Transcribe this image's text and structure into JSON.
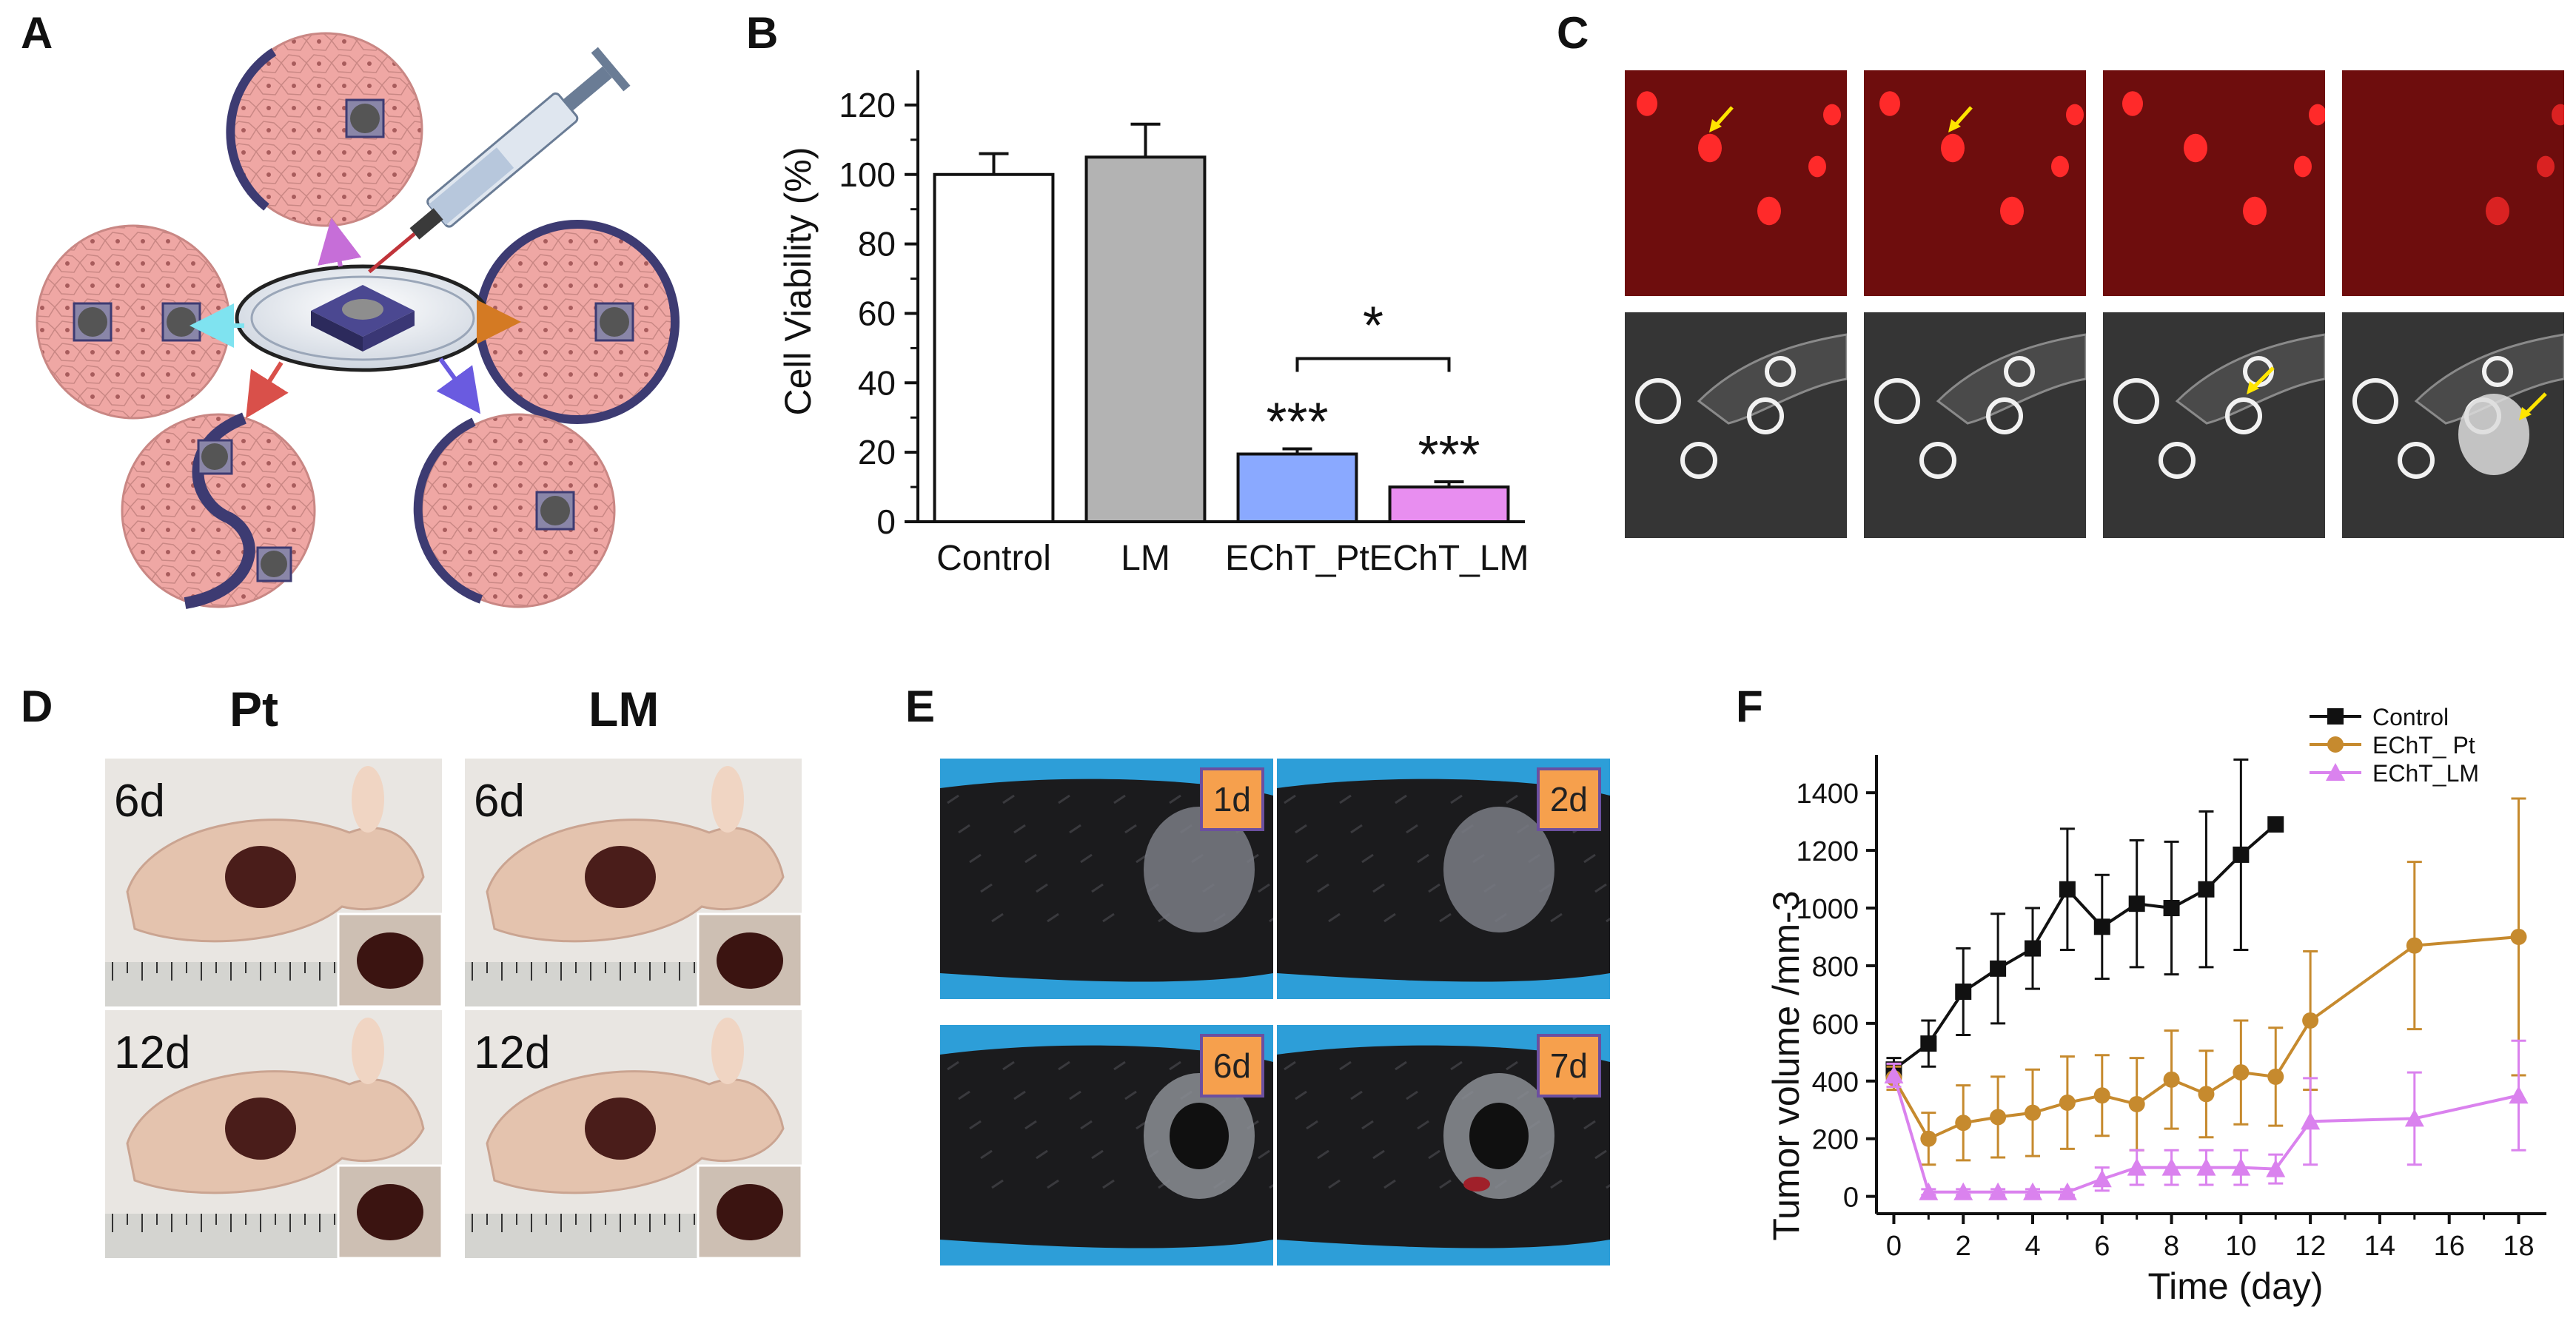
{
  "panels": {
    "a": {
      "label": "A"
    },
    "b": {
      "label": "B"
    },
    "c": {
      "label": "C"
    },
    "d": {
      "label": "D",
      "col_pt": "Pt",
      "col_lm": "LM",
      "days": [
        "6d",
        "6d",
        "12d",
        "12d"
      ]
    },
    "e": {
      "label": "E",
      "days": [
        "1d",
        "2d",
        "6d",
        "7d"
      ]
    },
    "f": {
      "label": "F"
    }
  },
  "chart_data": [
    {
      "type": "bar",
      "categories": [
        "Control",
        "LM",
        "EChT_Pt",
        "EChT_LM"
      ],
      "values": [
        100,
        105,
        19.5,
        10
      ],
      "errors": [
        6,
        9.5,
        1.5,
        1.5
      ],
      "colors": [
        "#ffffff",
        "#b3b3b3",
        "#8aa9ff",
        "#e88ef0"
      ],
      "significance": [
        "",
        "",
        "***",
        "***"
      ],
      "bracket": {
        "from": "EChT_Pt",
        "to": "EChT_LM",
        "label": "*"
      },
      "title": "",
      "xlabel": "",
      "ylabel": "Cell Viability (%)",
      "ylim": [
        0,
        130
      ],
      "yticks": [
        "0",
        "20",
        "40",
        "60",
        "80",
        "100",
        "120"
      ]
    },
    {
      "type": "line",
      "title": "",
      "xlabel": "Time (day)",
      "ylabel": "Tumor volume /mm-3",
      "xlim": [
        -0.5,
        18.8
      ],
      "ylim": [
        -60,
        1480
      ],
      "xticks": [
        "0",
        "2",
        "4",
        "6",
        "8",
        "10",
        "12",
        "14",
        "16",
        "18"
      ],
      "yticks": [
        "0",
        "200",
        "400",
        "600",
        "800",
        "1000",
        "1200",
        "1400"
      ],
      "legend": "top-right",
      "series": [
        {
          "name": "Control",
          "color": "#111111",
          "marker": "square",
          "x": [
            0,
            1,
            2,
            3,
            4,
            5,
            6,
            7,
            8,
            9,
            10,
            11
          ],
          "y": [
            440,
            530,
            710,
            790,
            860,
            1065,
            935,
            1015,
            1000,
            1065,
            1185,
            1290
          ],
          "err": [
            40,
            80,
            150,
            190,
            140,
            210,
            180,
            220,
            230,
            270,
            330,
            0
          ]
        },
        {
          "name": "EChT_ Pt",
          "color": "#c68a2e",
          "marker": "circle",
          "x": [
            0,
            1,
            2,
            3,
            4,
            5,
            6,
            7,
            8,
            9,
            10,
            11,
            12,
            15,
            18
          ],
          "y": [
            410,
            200,
            255,
            275,
            290,
            325,
            350,
            320,
            405,
            355,
            430,
            415,
            610,
            870,
            900
          ],
          "err": [
            40,
            90,
            130,
            140,
            150,
            160,
            140,
            160,
            170,
            150,
            180,
            170,
            240,
            290,
            480
          ]
        },
        {
          "name": "EChT_LM",
          "color": "#da82ee",
          "marker": "triangle",
          "x": [
            0,
            1,
            2,
            3,
            4,
            5,
            6,
            7,
            8,
            9,
            10,
            11,
            12,
            15,
            18
          ],
          "y": [
            420,
            15,
            15,
            15,
            15,
            15,
            60,
            100,
            100,
            100,
            100,
            95,
            260,
            270,
            350
          ],
          "err": [
            40,
            10,
            10,
            10,
            10,
            10,
            40,
            60,
            60,
            60,
            60,
            50,
            150,
            160,
            190
          ]
        }
      ]
    }
  ],
  "colors": {
    "tissue": "#efa7a4",
    "cell_line": "#b37272",
    "device": "#3d3b72",
    "arrow_magenta": "#c66ed8",
    "arrow_cyan": "#7fe3f0",
    "arrow_orange": "#d47a23",
    "arrow_red": "#d9504a",
    "arrow_blue": "#6a5be0",
    "bg_blue": "#2d9ed8"
  }
}
